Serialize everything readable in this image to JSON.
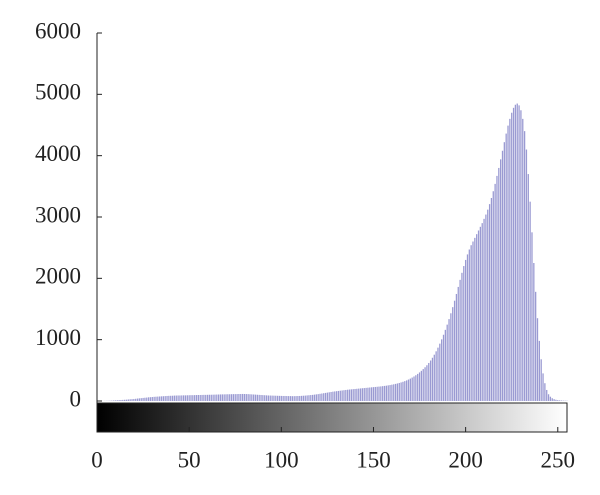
{
  "chart_data": {
    "type": "histogram",
    "color": "#9a9ad2",
    "xlim": [
      0,
      255
    ],
    "ylim": [
      0,
      6000
    ],
    "xticks": [
      0,
      50,
      100,
      150,
      200,
      250
    ],
    "yticks": [
      0,
      1000,
      2000,
      3000,
      4000,
      5000,
      6000
    ],
    "x": [
      0,
      1,
      2,
      3,
      4,
      5,
      6,
      7,
      8,
      9,
      10,
      11,
      12,
      13,
      14,
      15,
      16,
      17,
      18,
      19,
      20,
      21,
      22,
      23,
      24,
      25,
      26,
      27,
      28,
      29,
      30,
      31,
      32,
      33,
      34,
      35,
      36,
      37,
      38,
      39,
      40,
      41,
      42,
      43,
      44,
      45,
      46,
      47,
      48,
      49,
      50,
      51,
      52,
      53,
      54,
      55,
      56,
      57,
      58,
      59,
      60,
      61,
      62,
      63,
      64,
      65,
      66,
      67,
      68,
      69,
      70,
      71,
      72,
      73,
      74,
      75,
      76,
      77,
      78,
      79,
      80,
      81,
      82,
      83,
      84,
      85,
      86,
      87,
      88,
      89,
      90,
      91,
      92,
      93,
      94,
      95,
      96,
      97,
      98,
      99,
      100,
      101,
      102,
      103,
      104,
      105,
      106,
      107,
      108,
      109,
      110,
      111,
      112,
      113,
      114,
      115,
      116,
      117,
      118,
      119,
      120,
      121,
      122,
      123,
      124,
      125,
      126,
      127,
      128,
      129,
      130,
      131,
      132,
      133,
      134,
      135,
      136,
      137,
      138,
      139,
      140,
      141,
      142,
      143,
      144,
      145,
      146,
      147,
      148,
      149,
      150,
      151,
      152,
      153,
      154,
      155,
      156,
      157,
      158,
      159,
      160,
      161,
      162,
      163,
      164,
      165,
      166,
      167,
      168,
      169,
      170,
      171,
      172,
      173,
      174,
      175,
      176,
      177,
      178,
      179,
      180,
      181,
      182,
      183,
      184,
      185,
      186,
      187,
      188,
      189,
      190,
      191,
      192,
      193,
      194,
      195,
      196,
      197,
      198,
      199,
      200,
      201,
      202,
      203,
      204,
      205,
      206,
      207,
      208,
      209,
      210,
      211,
      212,
      213,
      214,
      215,
      216,
      217,
      218,
      219,
      220,
      221,
      222,
      223,
      224,
      225,
      226,
      227,
      228,
      229,
      230,
      231,
      232,
      233,
      234,
      235,
      236,
      237,
      238,
      239,
      240,
      241,
      242,
      243,
      244,
      245,
      246,
      247,
      248,
      249,
      250,
      251,
      252,
      253,
      254,
      255
    ],
    "values": [
      0,
      0,
      1,
      1,
      2,
      3,
      4,
      5,
      6,
      8,
      10,
      12,
      14,
      16,
      18,
      20,
      22,
      25,
      28,
      30,
      33,
      36,
      40,
      43,
      46,
      50,
      53,
      56,
      60,
      62,
      65,
      68,
      70,
      72,
      74,
      76,
      78,
      80,
      82,
      84,
      85,
      86,
      88,
      89,
      90,
      90,
      91,
      92,
      92,
      93,
      94,
      95,
      95,
      96,
      97,
      98,
      98,
      99,
      100,
      100,
      101,
      102,
      102,
      103,
      104,
      105,
      106,
      107,
      108,
      108,
      109,
      110,
      110,
      111,
      112,
      112,
      113,
      114,
      114,
      115,
      114,
      113,
      112,
      110,
      108,
      106,
      104,
      102,
      100,
      98,
      96,
      94,
      92,
      90,
      89,
      88,
      87,
      86,
      85,
      84,
      83,
      82,
      82,
      81,
      80,
      80,
      79,
      79,
      80,
      81,
      82,
      84,
      86,
      88,
      91,
      94,
      97,
      100,
      104,
      108,
      112,
      117,
      122,
      127,
      132,
      137,
      142,
      147,
      152,
      156,
      160,
      164,
      168,
      172,
      176,
      180,
      184,
      187,
      190,
      193,
      196,
      199,
      202,
      205,
      208,
      211,
      214,
      217,
      220,
      223,
      226,
      229,
      232,
      235,
      238,
      242,
      246,
      250,
      255,
      260,
      266,
      272,
      279,
      286,
      294,
      303,
      313,
      324,
      336,
      350,
      365,
      382,
      400,
      420,
      442,
      466,
      492,
      520,
      550,
      583,
      620,
      660,
      705,
      755,
      810,
      870,
      935,
      1005,
      1080,
      1160,
      1245,
      1335,
      1430,
      1530,
      1635,
      1745,
      1860,
      1975,
      2090,
      2200,
      2300,
      2390,
      2470,
      2540,
      2600,
      2660,
      2720,
      2780,
      2840,
      2900,
      2970,
      3040,
      3120,
      3210,
      3310,
      3420,
      3540,
      3670,
      3800,
      3940,
      4080,
      4220,
      4360,
      4490,
      4600,
      4700,
      4780,
      4830,
      4850,
      4820,
      4740,
      4600,
      4400,
      4100,
      3700,
      3250,
      2750,
      2250,
      1780,
      1350,
      980,
      680,
      450,
      290,
      180,
      110,
      70,
      45,
      30,
      20,
      14,
      10,
      8,
      6,
      5,
      4
    ]
  }
}
